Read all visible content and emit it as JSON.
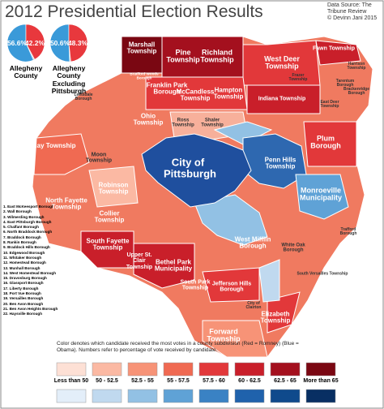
{
  "header": {
    "title": "2012 Presidential Election Results",
    "source": "Data Source: The Tribune Review",
    "credit": "© Devinn Jani 2015"
  },
  "summary": [
    {
      "label": "Allegheny County",
      "values": [
        56.6,
        42.2
      ],
      "value_labels": [
        "56.6%",
        "42.2%"
      ],
      "colors": [
        "#3a9ad9",
        "#e8383d"
      ]
    },
    {
      "label": "Allegheny County Excluding Pittsburgh",
      "values": [
        50.6,
        48.3
      ],
      "value_labels": [
        "50.6%",
        "48.3%"
      ],
      "colors": [
        "#3a9ad9",
        "#e8383d"
      ]
    }
  ],
  "map": {
    "municipalities": [
      "Marshall Township",
      "Pine Township",
      "Richland Township",
      "West Deer Township",
      "Fawn Township",
      "Franklin Park Borough",
      "McCandless Township",
      "Hampton Township",
      "Indiana Township",
      "Ohio Township",
      "Ross Township",
      "Shaler Township",
      "Plum Borough",
      "Penn Hills Township",
      "City of Pittsburgh",
      "Findlay Township",
      "Moon Township",
      "Robinson Township",
      "North Fayette Township",
      "Monroeville Municipality",
      "Collier Township",
      "South Fayette Township",
      "Upper St. Clair Township",
      "Bethel Park Municipality",
      "West Mifflin Borough",
      "White Oak Borough",
      "South Park Township",
      "Jefferson Hills Borough",
      "City of Clairton",
      "Elizabeth Township",
      "Forward Township",
      "Harrison Township",
      "Tarentum Borough",
      "Brackenridge Borough",
      "East Deer Township",
      "Frazer Township",
      "Bradford Woods Borough",
      "Leetsdale Borough",
      "Trafford Borough",
      "South Versailles Township"
    ],
    "small_municipalities": [
      "1. East McKeesport Borough",
      "2. Wall Borough",
      "3. Wilmerding Borough",
      "4. East Pittsburgh Borough",
      "5. Chalfant Borough",
      "6. North Braddock Borough",
      "7. Braddock Borough",
      "8. Rankin Borough",
      "9. Braddock Hills Borough",
      "10. Edgewood Borough",
      "11. Whitaker Borough",
      "12. Homestead Borough",
      "13. Munhall Borough",
      "14. West Homestead Borough",
      "15. Dravosburg Borough",
      "16. Glassport Borough",
      "17. Liberty Borough",
      "18. Port Vue Borough",
      "19. Versailles Borough",
      "20. Ben Avon Borough",
      "21. Ben Avon Heights Borough",
      "22. Haysville Borough"
    ]
  },
  "legend": {
    "note": "Color denotes which candidate received the most votes in a county subdivision (Red = Romney) (Blue = Obama). Numbers refer to percentage of vote received by candidate.",
    "bins": [
      "Less than 50",
      "50 - 52.5",
      "52.5 - 55",
      "55 - 57.5",
      "57.5 - 60",
      "60 - 62.5",
      "62.5 - 65",
      "More than 65"
    ],
    "red_colors": [
      "#fde0d5",
      "#fbb9a3",
      "#f79377",
      "#f06a52",
      "#e2383a",
      "#c91f2a",
      "#a4101e",
      "#7a0712"
    ],
    "blue_colors": [
      "#e3eef9",
      "#c0d9ef",
      "#92c1e4",
      "#5fa2d6",
      "#3a82c4",
      "#1f62ac",
      "#0f4a8c",
      "#082f63"
    ]
  }
}
